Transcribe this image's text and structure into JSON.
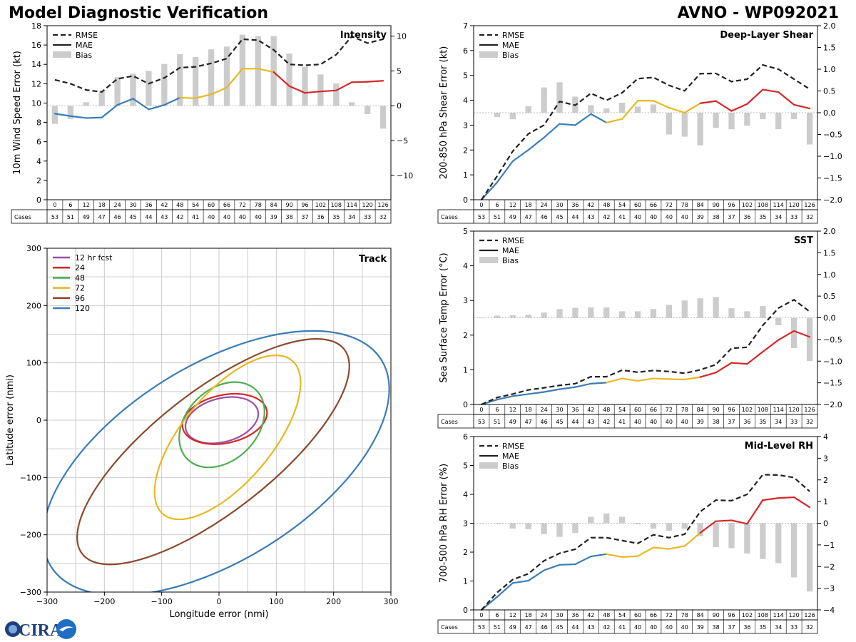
{
  "title": "Model Diagnostic Verification",
  "subtitle": "AVNO - WP092021",
  "logo_text": "CIRA",
  "lead_hours": [
    0,
    6,
    12,
    18,
    24,
    30,
    36,
    42,
    48,
    54,
    60,
    66,
    72,
    78,
    84,
    90,
    96,
    102,
    108,
    114,
    120,
    126
  ],
  "cases": [
    53,
    51,
    49,
    47,
    46,
    45,
    44,
    43,
    42,
    41,
    40,
    40,
    40,
    40,
    39,
    38,
    37,
    36,
    35,
    34,
    33,
    32
  ],
  "cases_label": "Cases",
  "legend": {
    "rmse": "RMSE",
    "mae": "MAE",
    "bias": "Bias"
  },
  "colors": {
    "rmse": "#222222",
    "bias": "#cccccc",
    "early": "#3a7db8",
    "mid": "#e8b820",
    "late": "#d62728",
    "grid": "#cccccc"
  },
  "chart_data": [
    {
      "id": "intensity",
      "type": "line",
      "title": "Intensity",
      "ylabel": "10m Wind Speed Error (kt)",
      "ylim": [
        0,
        18
      ],
      "yticks": [
        0,
        2,
        4,
        6,
        8,
        10,
        12,
        14,
        16,
        18
      ],
      "y2lim": [
        -13.5,
        11.5
      ],
      "y2ticks": [
        -10,
        -5,
        0,
        5,
        10
      ],
      "y2ticklabels": [
        "−10",
        "−5",
        "0",
        "5",
        "10"
      ],
      "rmse": [
        12.4,
        12.0,
        11.35,
        11.15,
        12.5,
        12.8,
        12.0,
        12.6,
        13.65,
        13.75,
        14.1,
        14.6,
        16.6,
        16.5,
        15.5,
        14.0,
        13.9,
        14.0,
        15.0,
        16.9,
        16.2,
        16.6
      ],
      "mae": [
        8.9,
        8.65,
        8.45,
        8.5,
        9.8,
        10.45,
        9.35,
        9.8,
        10.55,
        10.5,
        10.9,
        11.6,
        13.55,
        13.55,
        13.2,
        11.75,
        11.05,
        11.2,
        11.3,
        12.15,
        12.2,
        12.3
      ],
      "bias": [
        -2.6,
        -1.9,
        0.5,
        2.1,
        4.1,
        4.6,
        5.0,
        6.0,
        7.4,
        7.0,
        8.1,
        8.5,
        10.2,
        10.0,
        10.0,
        7.5,
        5.6,
        4.5,
        3.2,
        0.5,
        -1.2,
        -3.3
      ]
    },
    {
      "id": "shear",
      "type": "line",
      "title": "Deep-Layer Shear",
      "ylabel": "200-850 hPa Shear Error (kt)",
      "ylim": [
        0,
        7
      ],
      "yticks": [
        0,
        1,
        2,
        3,
        4,
        5,
        6,
        7
      ],
      "y2lim": [
        -2.0,
        2.0
      ],
      "y2ticks": [
        -2,
        -1.5,
        -1,
        -0.5,
        0,
        0.5,
        1,
        1.5,
        2
      ],
      "y2ticklabels": [
        "−2.0",
        "−1.5",
        "−1.0",
        "−0.5",
        "0.0",
        "0.5",
        "1.0",
        "1.5",
        "2.0"
      ],
      "rmse": [
        0.0,
        0.95,
        1.95,
        2.65,
        3.0,
        3.95,
        3.8,
        4.28,
        4.0,
        4.3,
        4.87,
        4.92,
        4.6,
        4.38,
        5.07,
        5.08,
        4.75,
        4.85,
        5.42,
        5.25,
        4.85,
        4.45
      ],
      "mae": [
        0.0,
        0.7,
        1.55,
        2.0,
        2.5,
        3.05,
        3.0,
        3.45,
        3.1,
        3.25,
        3.98,
        3.98,
        3.7,
        3.5,
        3.88,
        3.97,
        3.57,
        3.85,
        4.43,
        4.33,
        3.82,
        3.67
      ],
      "bias": [
        0.0,
        -0.1,
        -0.15,
        0.15,
        0.58,
        0.7,
        0.37,
        0.17,
        0.1,
        0.23,
        0.14,
        0.19,
        -0.5,
        -0.55,
        -0.75,
        -0.35,
        -0.38,
        -0.3,
        -0.15,
        -0.38,
        -0.15,
        -0.73
      ]
    },
    {
      "id": "sst",
      "type": "line",
      "title": "SST",
      "ylabel": "Sea Surface Temp Error (°C)",
      "ylim": [
        0,
        5
      ],
      "yticks": [
        0,
        1,
        2,
        3,
        4,
        5
      ],
      "y2lim": [
        -2.0,
        2.0
      ],
      "y2ticks": [
        -2,
        -1.5,
        -1,
        -0.5,
        0,
        0.5,
        1,
        1.5,
        2
      ],
      "y2ticklabels": [
        "−2.0",
        "−1.5",
        "−1.0",
        "−0.5",
        "0.0",
        "0.5",
        "1.0",
        "1.5",
        "2.0"
      ],
      "rmse": [
        0.0,
        0.2,
        0.3,
        0.42,
        0.48,
        0.55,
        0.6,
        0.8,
        0.8,
        0.99,
        0.93,
        0.98,
        0.95,
        0.9,
        1.0,
        1.15,
        1.62,
        1.65,
        2.28,
        2.78,
        3.02,
        2.68
      ],
      "mae": [
        0.0,
        0.14,
        0.24,
        0.3,
        0.36,
        0.44,
        0.5,
        0.6,
        0.63,
        0.75,
        0.68,
        0.75,
        0.73,
        0.72,
        0.79,
        0.92,
        1.2,
        1.17,
        1.52,
        1.86,
        2.12,
        1.95
      ],
      "bias": [
        0.0,
        0.05,
        0.06,
        0.07,
        0.12,
        0.2,
        0.23,
        0.24,
        0.24,
        0.15,
        0.15,
        0.2,
        0.3,
        0.4,
        0.45,
        0.48,
        0.22,
        0.15,
        0.27,
        -0.17,
        -0.7,
        -1.0
      ]
    },
    {
      "id": "rh",
      "type": "line",
      "title": "Mid-Level RH",
      "ylabel": "700-500 hPa RH Error (%)",
      "ylim": [
        0,
        6
      ],
      "yticks": [
        0,
        1,
        2,
        3,
        4,
        5,
        6
      ],
      "y2lim": [
        -4,
        4
      ],
      "y2ticks": [
        -4,
        -3,
        -2,
        -1,
        0,
        1,
        2,
        3,
        4
      ],
      "y2ticklabels": [
        "−4",
        "−3",
        "−2",
        "−1",
        "0",
        "1",
        "2",
        "3",
        "4"
      ],
      "rmse": [
        0.0,
        0.6,
        1.05,
        1.25,
        1.7,
        1.96,
        2.1,
        2.5,
        2.5,
        2.4,
        2.3,
        2.6,
        2.5,
        2.62,
        3.4,
        3.8,
        3.78,
        4.0,
        4.68,
        4.67,
        4.58,
        4.1
      ],
      "mae": [
        0.0,
        0.45,
        0.93,
        1.01,
        1.37,
        1.56,
        1.58,
        1.85,
        1.93,
        1.83,
        1.86,
        2.16,
        2.11,
        2.21,
        2.67,
        3.07,
        3.1,
        2.98,
        3.8,
        3.87,
        3.9,
        3.55
      ],
      "bias": [
        0.0,
        -0.03,
        -0.25,
        -0.27,
        -0.5,
        -0.63,
        -0.45,
        0.3,
        0.45,
        0.3,
        -0.05,
        -0.25,
        -0.35,
        -0.25,
        -0.6,
        -1.1,
        -1.15,
        -1.4,
        -1.65,
        -1.85,
        -2.5,
        -3.15
      ]
    },
    {
      "id": "track",
      "type": "scatter",
      "title": "Track",
      "xlabel": "Longitude error (nmi)",
      "ylabel": "Latitude error (nmi)",
      "xlim": [
        -300,
        300
      ],
      "ylim": [
        -300,
        300
      ],
      "ticks": [
        -300,
        -200,
        -100,
        0,
        100,
        200,
        300
      ],
      "ticklabels": [
        "−300",
        "−200",
        "−100",
        "0",
        "100",
        "200",
        "300"
      ],
      "ellipses": [
        {
          "label": "12 hr fcst",
          "color": "#9b4fa5",
          "cx": 5,
          "cy": 0,
          "a": 65,
          "b": 38,
          "angle": -15
        },
        {
          "label": "24",
          "color": "#d62728",
          "cx": 10,
          "cy": 2,
          "a": 75,
          "b": 42,
          "angle": -12
        },
        {
          "label": "48",
          "color": "#4caf50",
          "cx": 5,
          "cy": -8,
          "a": 85,
          "b": 62,
          "angle": -45
        },
        {
          "label": "72",
          "color": "#e8b820",
          "cx": 15,
          "cy": -30,
          "a": 175,
          "b": 78,
          "angle": -50
        },
        {
          "label": "96",
          "color": "#8b4a2b",
          "cx": -10,
          "cy": -55,
          "a": 290,
          "b": 105,
          "angle": -38
        },
        {
          "label": "120",
          "color": "#3a7db8",
          "cx": -5,
          "cy": -75,
          "a": 340,
          "b": 170,
          "angle": -32
        }
      ]
    }
  ]
}
